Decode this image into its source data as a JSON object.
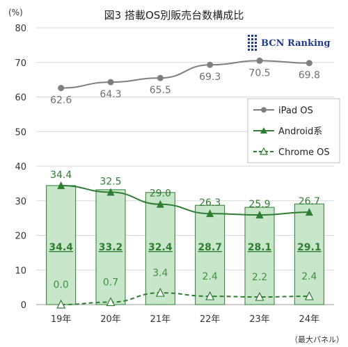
{
  "chart_data": {
    "type": "bar",
    "title": "図3 搭載OS別販売台数構成比",
    "unit": "(%)",
    "categories": [
      "19年",
      "20年",
      "21年",
      "22年",
      "23年",
      "24年"
    ],
    "ylim": [
      0,
      80
    ],
    "yticks": [
      0,
      10,
      20,
      30,
      40,
      50,
      60,
      70,
      80
    ],
    "grid": true,
    "note": "（最大パネル）",
    "bars": {
      "values": [
        34.4,
        33.2,
        32.4,
        28.7,
        28.1,
        29.1
      ],
      "color": "#c8e6c9",
      "edge_color": "#2e7d32"
    },
    "series": [
      {
        "name": "iPad OS",
        "type": "line",
        "values": [
          62.6,
          64.3,
          65.5,
          69.3,
          70.5,
          69.8
        ],
        "color": "#7f7f7f",
        "marker": "circle"
      },
      {
        "name": "Android系",
        "type": "line",
        "values": [
          34.4,
          32.5,
          29.0,
          26.3,
          25.9,
          26.7
        ],
        "color": "#2e7d32",
        "marker": "triangle"
      },
      {
        "name": "Chrome OS",
        "type": "line",
        "dashed": true,
        "values": [
          0.0,
          0.7,
          3.4,
          2.4,
          2.2,
          2.4
        ],
        "color": "#2e7d32",
        "marker": "triangle-open"
      }
    ],
    "legend_position": "right"
  },
  "logo": {
    "text": "BCN Ranking",
    "color": "#1f3b8a"
  }
}
